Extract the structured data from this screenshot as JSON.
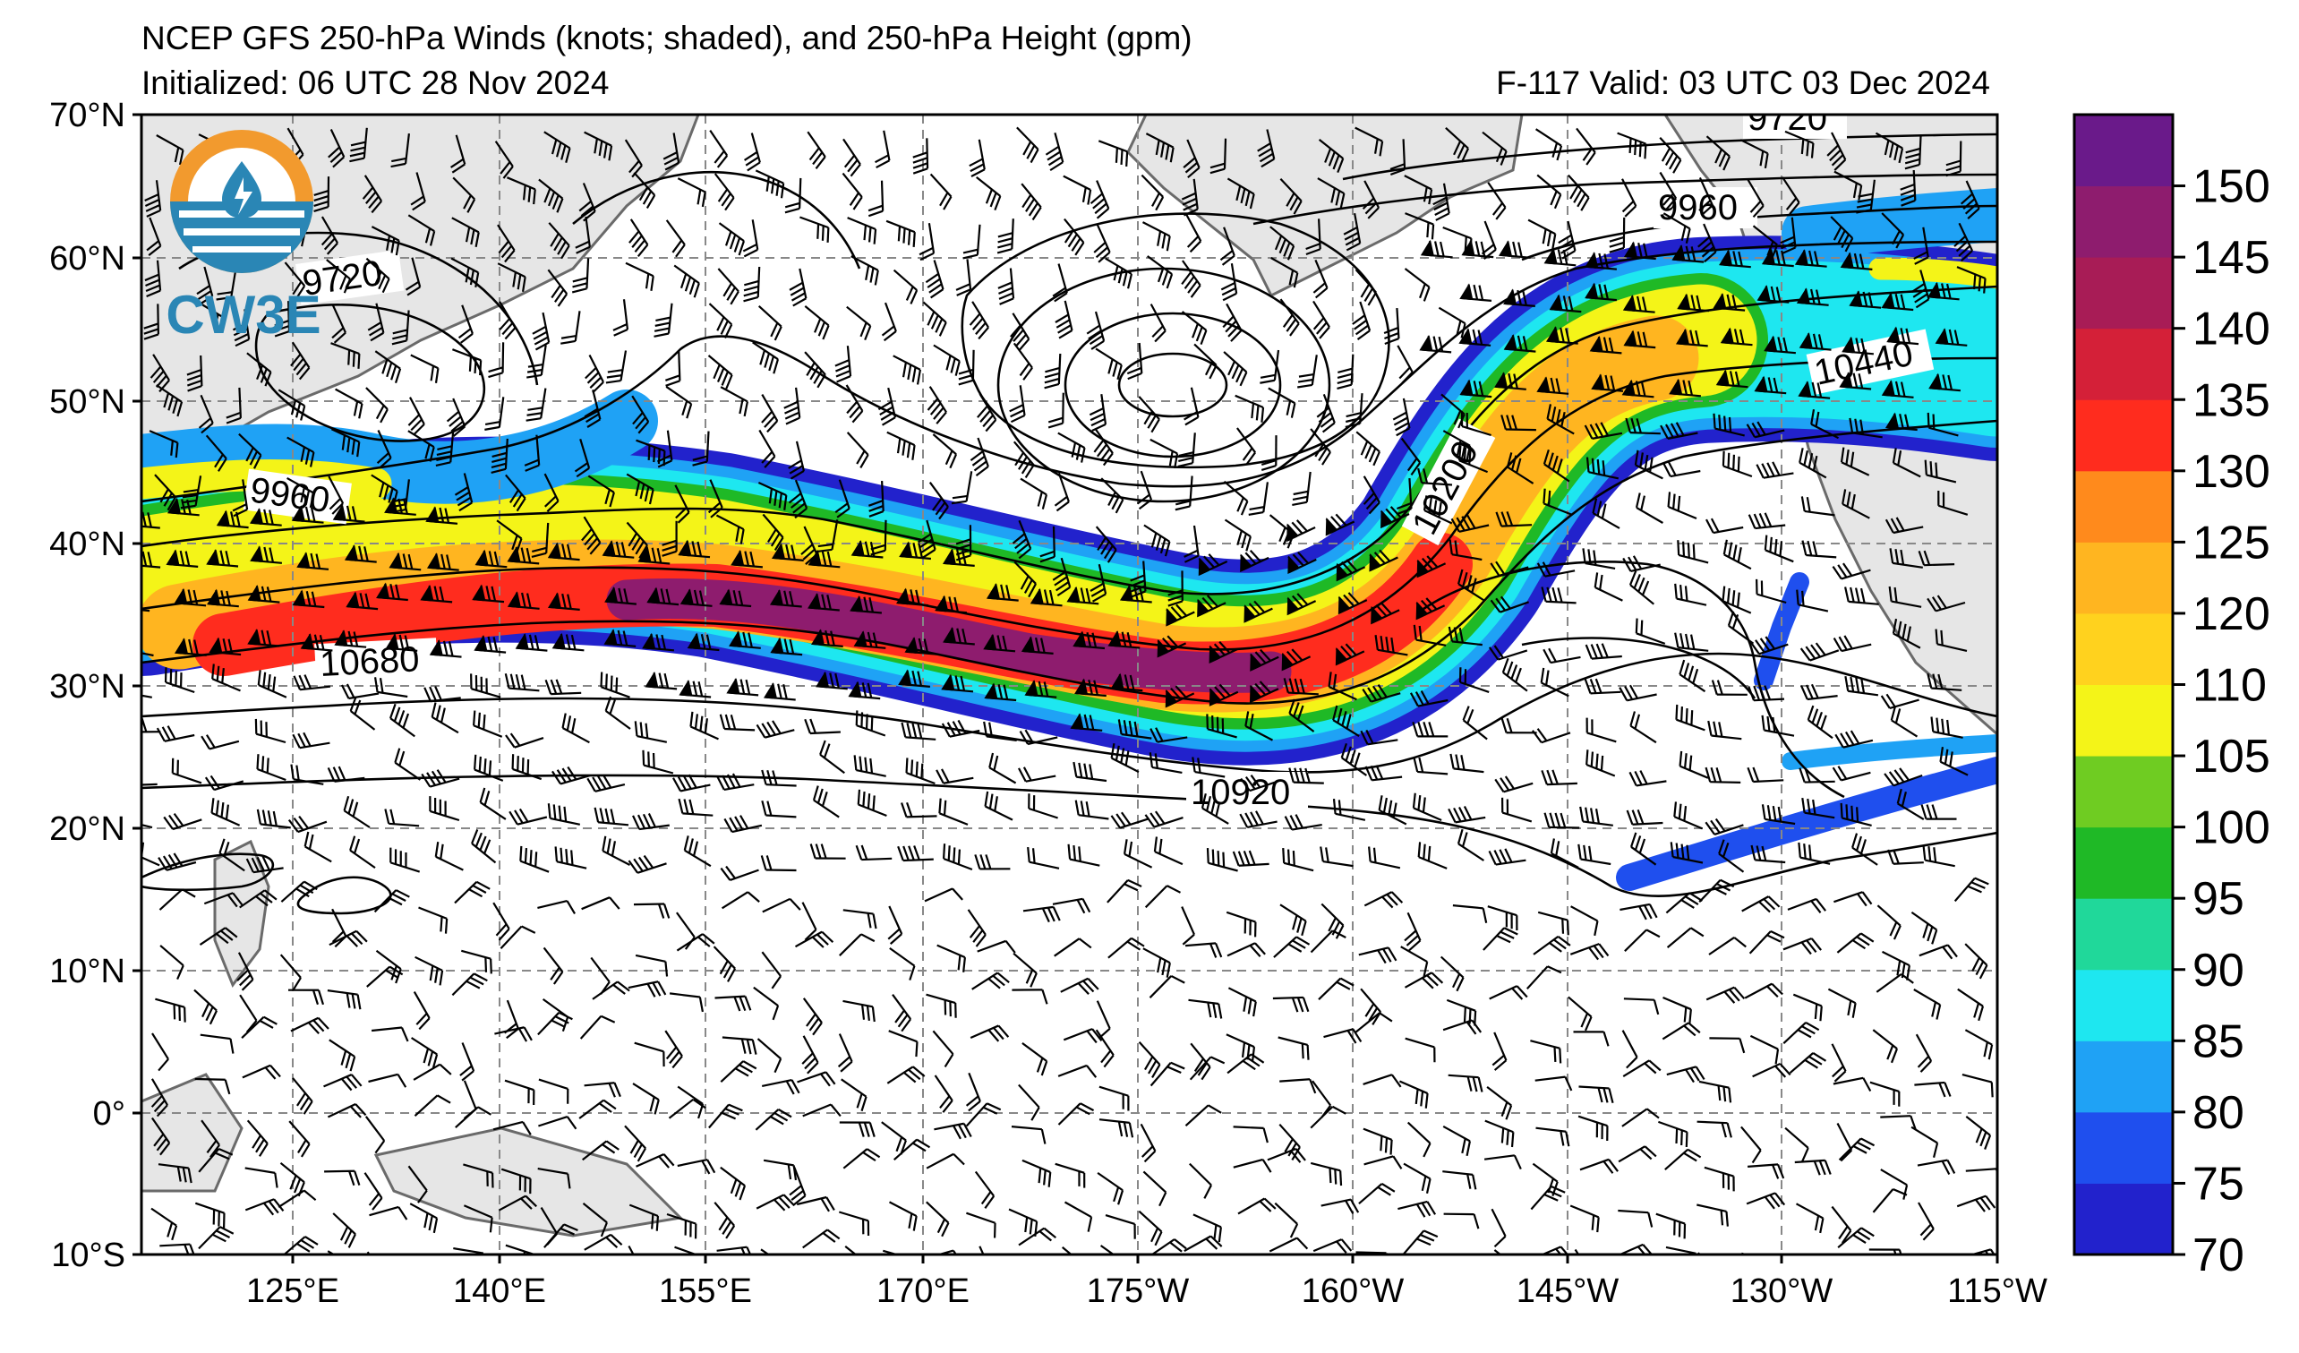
{
  "header": {
    "title": "NCEP GFS 250-hPa Winds (knots; shaded), and 250-hPa Height (gpm)",
    "initialized": "Initialized: 06 UTC 28 Nov 2024",
    "valid": "F-117  Valid: 03 UTC 03 Dec 2024"
  },
  "logo": {
    "text": "CW3E",
    "colors": {
      "orange": "#f29a2e",
      "blue": "#2a86b5"
    }
  },
  "map": {
    "lat_labels": [
      "70°N",
      "60°N",
      "50°N",
      "40°N",
      "30°N",
      "20°N",
      "10°N",
      "0°",
      "10°S"
    ],
    "lon_labels": [
      "125°E",
      "140°E",
      "155°E",
      "170°E",
      "175°W",
      "160°W",
      "145°W",
      "130°W",
      "115°W"
    ],
    "lat_range": [
      -10,
      70
    ],
    "lon_range": [
      110,
      245
    ],
    "contour_labels": [
      "9720",
      "9960",
      "9960",
      "9720",
      "10200",
      "10440",
      "10680",
      "10920"
    ],
    "grid": "dashed gray",
    "land_color": "#e6e6e6"
  },
  "colorbar": {
    "ticks": [
      "70",
      "75",
      "80",
      "85",
      "90",
      "95",
      "100",
      "105",
      "110",
      "120",
      "125",
      "130",
      "135",
      "140",
      "145",
      "150"
    ],
    "colors": [
      "#2222cc",
      "#1f4fee",
      "#1fa2f5",
      "#1ee7f0",
      "#20d89a",
      "#1fb926",
      "#6fcc22",
      "#f4f418",
      "#ffd21e",
      "#ffb520",
      "#ff8a1c",
      "#ff2c1e",
      "#d42038",
      "#a81c56",
      "#8e1c6e",
      "#6a1a8a"
    ]
  }
}
